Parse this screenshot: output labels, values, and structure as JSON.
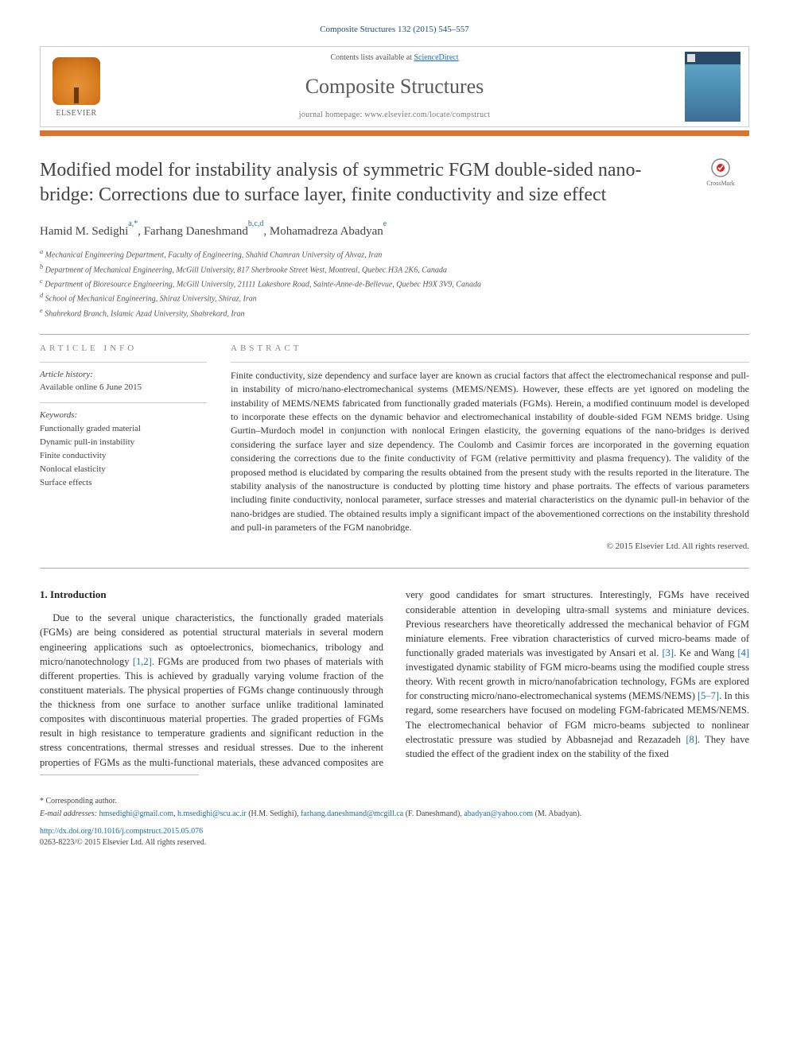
{
  "header": {
    "citation": "Composite Structures 132 (2015) 545–557",
    "contents_line_prefix": "Contents lists available at ",
    "contents_line_link": "ScienceDirect",
    "journal_name": "Composite Structures",
    "homepage_prefix": "journal homepage: ",
    "homepage_url": "www.elsevier.com/locate/compstruct",
    "publisher_label": "ELSEVIER",
    "cover_label": "COMPOSITE STRUCTURES"
  },
  "crossmark": "CrossMark",
  "title": "Modified model for instability analysis of symmetric FGM double-sided nano-bridge: Corrections due to surface layer, finite conductivity and size effect",
  "authors_html": {
    "a1_name": "Hamid M. Sedighi",
    "a1_sup": "a,*",
    "a2_name": "Farhang Daneshmand",
    "a2_sup": "b,c,d",
    "a3_name": "Mohamadreza Abadyan",
    "a3_sup": "e"
  },
  "affiliations": {
    "a": "Mechanical Engineering Department, Faculty of Engineering, Shahid Chamran University of Ahvaz, Iran",
    "b": "Department of Mechanical Engineering, McGill University, 817 Sherbrooke Street West, Montreal, Quebec H3A 2K6, Canada",
    "c": "Department of Bioresource Engineering, McGill University, 21111 Lakeshore Road, Sainte-Anne-de-Bellevue, Quebec H9X 3V9, Canada",
    "d": "School of Mechanical Engineering, Shiraz University, Shiraz, Iran",
    "e": "Shahrekord Branch, Islamic Azad University, Shahrekord, Iran"
  },
  "info": {
    "heading": "article info",
    "history_label": "Article history:",
    "history_value": "Available online 6 June 2015",
    "keywords_label": "Keywords:",
    "keywords": [
      "Functionally graded material",
      "Dynamic pull-in instability",
      "Finite conductivity",
      "Nonlocal elasticity",
      "Surface effects"
    ]
  },
  "abstract": {
    "heading": "abstract",
    "text": "Finite conductivity, size dependency and surface layer are known as crucial factors that affect the electromechanical response and pull-in instability of micro/nano-electromechanical systems (MEMS/NEMS). However, these effects are yet ignored on modeling the instability of MEMS/NEMS fabricated from functionally graded materials (FGMs). Herein, a modified continuum model is developed to incorporate these effects on the dynamic behavior and electromechanical instability of double-sided FGM NEMS bridge. Using Gurtin–Murdoch model in conjunction with nonlocal Eringen elasticity, the governing equations of the nano-bridges is derived considering the surface layer and size dependency. The Coulomb and Casimir forces are incorporated in the governing equation considering the corrections due to the finite conductivity of FGM (relative permittivity and plasma frequency). The validity of the proposed method is elucidated by comparing the results obtained from the present study with the results reported in the literature. The stability analysis of the nanostructure is conducted by plotting time history and phase portraits. The effects of various parameters including finite conductivity, nonlocal parameter, surface stresses and material characteristics on the dynamic pull-in behavior of the nano-bridges are studied. The obtained results imply a significant impact of the abovementioned corrections on the instability threshold and pull-in parameters of the FGM nanobridge.",
    "copyright": "© 2015 Elsevier Ltd. All rights reserved."
  },
  "section1": {
    "heading": "1. Introduction",
    "para": "Due to the several unique characteristics, the functionally graded materials (FGMs) are being considered as potential structural materials in several modern engineering applications such as optoelectronics, biomechanics, tribology and micro/nanotechnology [1,2]. FGMs are produced from two phases of materials with different properties. This is achieved by gradually varying volume fraction of the constituent materials. The physical properties of FGMs change continuously through the thickness from one surface to another surface unlike traditional laminated composites with discontinuous material properties. The graded properties of FGMs result in high resistance to temperature gradients and significant reduction in the stress concentrations, thermal stresses and residual stresses. Due to the inherent properties of FGMs as the multi-functional materials, these advanced composites are very good candidates for smart structures. Interestingly, FGMs have received considerable attention in developing ultra-small systems and miniature devices. Previous researchers have theoretically addressed the mechanical behavior of FGM miniature elements. Free vibration characteristics of curved micro-beams made of functionally graded materials was investigated by Ansari et al. [3]. Ke and Wang [4] investigated dynamic stability of FGM micro-beams using the modified couple stress theory. With recent growth in micro/nanofabrication technology, FGMs are explored for constructing micro/nano-electromechanical systems (MEMS/NEMS) [5–7]. In this regard, some researchers have focused on modeling FGM-fabricated MEMS/NEMS. The electromechanical behavior of FGM micro-beams subjected to nonlinear electrostatic pressure was studied by Abbasnejad and Rezazadeh [8]. They have studied the effect of the gradient index on the stability of the fixed"
  },
  "footer": {
    "corr_label": "* Corresponding author.",
    "email_label": "E-mail addresses:",
    "emails": [
      {
        "addr": "hmsedighi@gmail.com",
        "who": ""
      },
      {
        "addr": "h.msedighi@scu.ac.ir",
        "who": "(H.M. Sedighi),"
      },
      {
        "addr": "farhang.daneshmand@mcgill.ca",
        "who": "(F. Daneshmand),"
      },
      {
        "addr": "abadyan@yahoo.com",
        "who": "(M. Abadyan)."
      }
    ],
    "doi_url": "http://dx.doi.org/10.1016/j.compstruct.2015.05.076",
    "issn_line": "0263-8223/© 2015 Elsevier Ltd. All rights reserved."
  },
  "colors": {
    "accent": "#d9762b",
    "link": "#1a6fb3",
    "rule": "#aaaaaa"
  }
}
